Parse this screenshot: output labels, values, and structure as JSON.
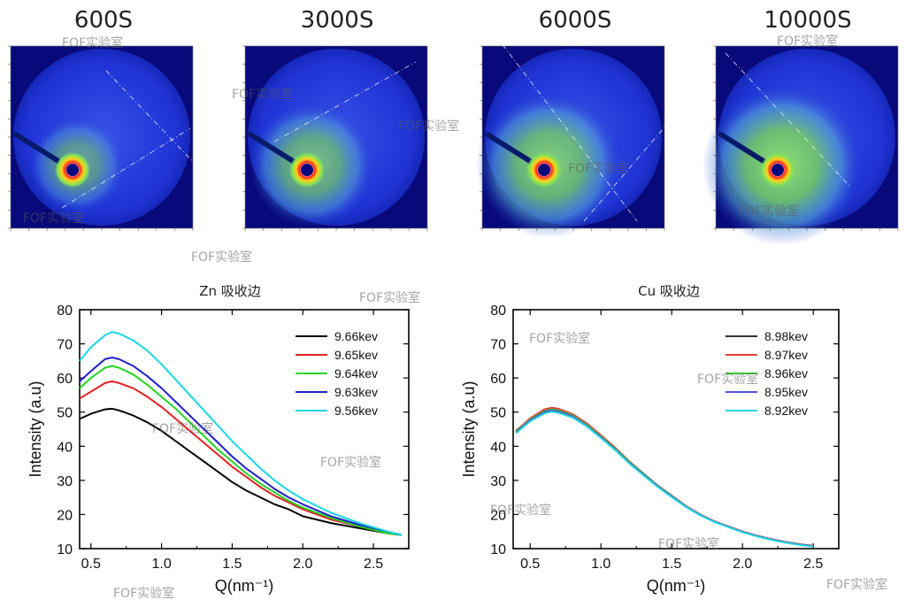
{
  "patterns": [
    {
      "label": "600S",
      "ring": 0.45
    },
    {
      "label": "3000S",
      "ring": 0.7
    },
    {
      "label": "6000S",
      "ring": 0.88
    },
    {
      "label": "10000S",
      "ring": 1.0
    }
  ],
  "watermark_text": "FOF实验室",
  "colors": {
    "axis": "#000000",
    "pattern_bg": "#08097a"
  },
  "chart_data": [
    {
      "type": "line",
      "title": "Zn 吸收边",
      "xlabel": "Q(nm⁻¹)",
      "ylabel": "Intensity (a.u)",
      "xlim": [
        0.42,
        2.75
      ],
      "ylim": [
        10,
        80
      ],
      "xticks": [
        0.5,
        1.0,
        1.5,
        2.0,
        2.5
      ],
      "xticklabels": [
        "0.5",
        "1.0",
        "1.5",
        "2.0",
        "2.5"
      ],
      "yticks": [
        10,
        20,
        30,
        40,
        50,
        60,
        70,
        80
      ],
      "legend_position": "top-right",
      "series": [
        {
          "name": "9.66kev",
          "color": "#000000",
          "x": [
            0.42,
            0.5,
            0.6,
            0.65,
            0.7,
            0.8,
            0.9,
            1.0,
            1.1,
            1.2,
            1.3,
            1.4,
            1.5,
            1.6,
            1.7,
            1.8,
            1.9,
            2.0,
            2.2,
            2.4,
            2.6,
            2.7
          ],
          "y": [
            48,
            49.5,
            50.8,
            51,
            50.5,
            49,
            47,
            44.5,
            41.5,
            38.5,
            35.5,
            32.5,
            29.5,
            27,
            25,
            23,
            21.5,
            19.5,
            17.5,
            16,
            14.5,
            14
          ]
        },
        {
          "name": "9.65kev",
          "color": "#e32020",
          "x": [
            0.42,
            0.5,
            0.6,
            0.65,
            0.7,
            0.8,
            0.9,
            1.0,
            1.1,
            1.2,
            1.3,
            1.4,
            1.5,
            1.6,
            1.7,
            1.8,
            1.9,
            2.0,
            2.2,
            2.4,
            2.6,
            2.7
          ],
          "y": [
            54,
            56,
            58.5,
            59,
            58.5,
            57,
            54.5,
            51.5,
            48,
            44.5,
            41,
            37.5,
            34,
            31,
            28,
            25.5,
            23.5,
            21.5,
            18.5,
            16.5,
            14.5,
            14
          ]
        },
        {
          "name": "9.64kev",
          "color": "#22d422",
          "x": [
            0.42,
            0.5,
            0.6,
            0.65,
            0.7,
            0.8,
            0.9,
            1.0,
            1.1,
            1.2,
            1.3,
            1.4,
            1.5,
            1.6,
            1.7,
            1.8,
            1.9,
            2.0,
            2.2,
            2.4,
            2.6,
            2.7
          ],
          "y": [
            57,
            60,
            63,
            63.5,
            63,
            61,
            58,
            54.5,
            51,
            47,
            43,
            39,
            35.5,
            32,
            29,
            26.5,
            24,
            22,
            19,
            16.5,
            14.5,
            14
          ]
        },
        {
          "name": "9.63kev",
          "color": "#2020c8",
          "x": [
            0.42,
            0.5,
            0.6,
            0.65,
            0.7,
            0.8,
            0.9,
            1.0,
            1.1,
            1.2,
            1.3,
            1.4,
            1.5,
            1.6,
            1.7,
            1.8,
            1.9,
            2.0,
            2.2,
            2.4,
            2.6,
            2.7
          ],
          "y": [
            59,
            62,
            65.5,
            66,
            65.5,
            63.5,
            60.5,
            57,
            53,
            49,
            45,
            41,
            37,
            33.5,
            30.5,
            27.5,
            25,
            23,
            19.5,
            17,
            15,
            14
          ]
        },
        {
          "name": "9.56kev",
          "color": "#1ad6e6",
          "x": [
            0.42,
            0.5,
            0.6,
            0.65,
            0.7,
            0.8,
            0.9,
            1.0,
            1.1,
            1.2,
            1.3,
            1.4,
            1.5,
            1.6,
            1.7,
            1.8,
            1.9,
            2.0,
            2.2,
            2.4,
            2.6,
            2.7
          ],
          "y": [
            65,
            69,
            72.5,
            73.5,
            73,
            71,
            68,
            64,
            59.5,
            55,
            50.5,
            46,
            41.5,
            37.5,
            33.5,
            30,
            27,
            24.5,
            20.5,
            17.5,
            15,
            14
          ]
        }
      ]
    },
    {
      "type": "line",
      "title": "Cu 吸收边",
      "xlabel": "Q(nm⁻¹)",
      "ylabel": "Intensity (a.u)",
      "xlim": [
        0.38,
        2.68
      ],
      "ylim": [
        10,
        80
      ],
      "xticks": [
        0.5,
        1.0,
        1.5,
        2.0,
        2.5
      ],
      "xticklabels": [
        "0.5",
        "1.0",
        "1.5",
        "2.0",
        "2.5"
      ],
      "yticks": [
        10,
        20,
        30,
        40,
        50,
        60,
        70,
        80
      ],
      "legend_position": "top-right",
      "series": [
        {
          "name": "8.98kev",
          "color": "#333333",
          "x": [
            0.4,
            0.5,
            0.6,
            0.65,
            0.7,
            0.8,
            0.9,
            1.0,
            1.1,
            1.2,
            1.3,
            1.4,
            1.5,
            1.6,
            1.7,
            1.8,
            1.9,
            2.0,
            2.1,
            2.2,
            2.3,
            2.4,
            2.5
          ],
          "y": [
            44.5,
            48,
            50.5,
            51,
            50.7,
            49.2,
            46.5,
            43,
            39.5,
            35.5,
            32,
            28.5,
            25.5,
            22.5,
            20,
            18,
            16.5,
            15,
            13.8,
            12.8,
            12,
            11.3,
            10.8
          ]
        },
        {
          "name": "8.97kev",
          "color": "#e04040",
          "x": [
            0.4,
            0.5,
            0.6,
            0.65,
            0.7,
            0.8,
            0.9,
            1.0,
            1.1,
            1.2,
            1.3,
            1.4,
            1.5,
            1.6,
            1.7,
            1.8,
            1.9,
            2.0,
            2.1,
            2.2,
            2.3,
            2.4,
            2.5
          ],
          "y": [
            44.3,
            48.2,
            50.8,
            51.3,
            51,
            49.4,
            46.7,
            43.2,
            39.6,
            35.6,
            32,
            28.5,
            25.5,
            22.5,
            20,
            18,
            16.5,
            15,
            13.8,
            12.8,
            12,
            11.3,
            10.8
          ]
        },
        {
          "name": "8.96kev",
          "color": "#30d030",
          "x": [
            0.4,
            0.5,
            0.6,
            0.65,
            0.7,
            0.8,
            0.9,
            1.0,
            1.1,
            1.2,
            1.3,
            1.4,
            1.5,
            1.6,
            1.7,
            1.8,
            1.9,
            2.0,
            2.1,
            2.2,
            2.3,
            2.4,
            2.5
          ],
          "y": [
            44.2,
            47.8,
            50.3,
            50.8,
            50.5,
            49,
            46.3,
            42.8,
            39.3,
            35.4,
            31.9,
            28.4,
            25.4,
            22.4,
            19.9,
            17.9,
            16.4,
            14.9,
            13.7,
            12.7,
            11.9,
            11.2,
            10.7
          ]
        },
        {
          "name": "8.95kev",
          "color": "#5050d8",
          "x": [
            0.4,
            0.5,
            0.6,
            0.65,
            0.7,
            0.8,
            0.9,
            1.0,
            1.1,
            1.2,
            1.3,
            1.4,
            1.5,
            1.6,
            1.7,
            1.8,
            1.9,
            2.0,
            2.1,
            2.2,
            2.3,
            2.4,
            2.5
          ],
          "y": [
            44,
            47.6,
            50,
            50.5,
            50.2,
            48.7,
            46,
            42.6,
            39.1,
            35.2,
            31.7,
            28.3,
            25.3,
            22.3,
            19.9,
            17.9,
            16.4,
            14.9,
            13.7,
            12.7,
            11.9,
            11.2,
            10.7
          ]
        },
        {
          "name": "8.92kev",
          "color": "#20d8e0",
          "x": [
            0.4,
            0.5,
            0.6,
            0.65,
            0.7,
            0.8,
            0.9,
            1.0,
            1.1,
            1.2,
            1.3,
            1.4,
            1.5,
            1.6,
            1.7,
            1.8,
            1.9,
            2.0,
            2.1,
            2.2,
            2.3,
            2.4,
            2.5
          ],
          "y": [
            43.8,
            47.3,
            49.6,
            50.1,
            49.8,
            48.4,
            45.8,
            42.4,
            38.9,
            35,
            31.5,
            28.1,
            25.1,
            22.2,
            19.8,
            17.8,
            16.3,
            14.8,
            13.6,
            12.6,
            11.8,
            11.1,
            10.6
          ]
        }
      ]
    }
  ]
}
